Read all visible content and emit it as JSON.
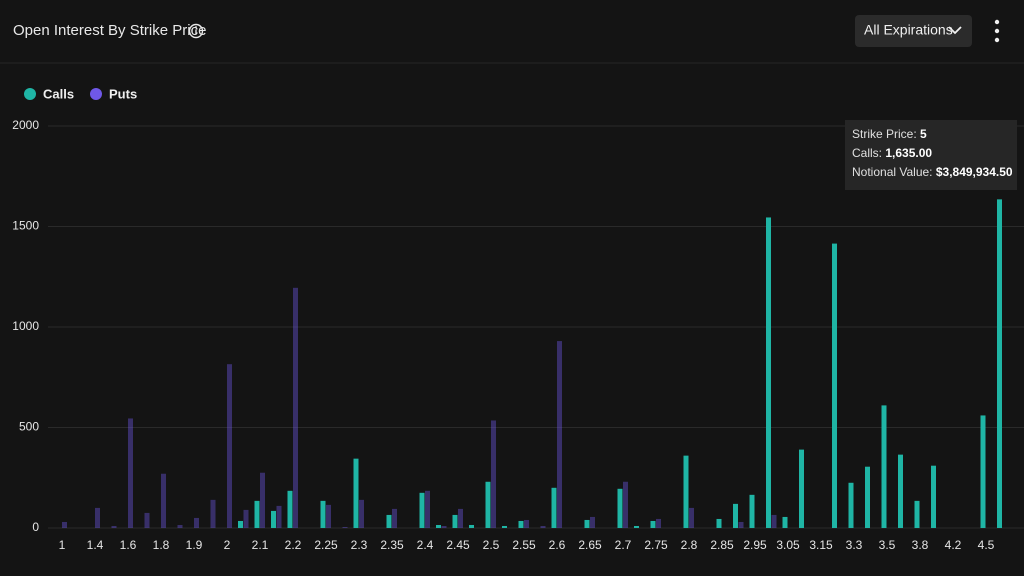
{
  "header": {
    "title": "Open Interest By Strike Price",
    "filter": "All Expirations"
  },
  "tooltip": {
    "strike_label": "Strike Price:",
    "strike": "5",
    "calls_label": "Calls:",
    "calls": "1,635.00",
    "notional_label": "Notional Value:",
    "notional": "$3,849,934.50"
  },
  "chart_data": {
    "type": "bar",
    "categories": [
      "1",
      null,
      "1.4",
      null,
      "1.6",
      null,
      "1.8",
      null,
      "1.9",
      null,
      "2",
      null,
      "2.1",
      null,
      "2.2",
      null,
      "2.25",
      null,
      "2.3",
      null,
      "2.35",
      null,
      "2.4",
      null,
      "2.45",
      null,
      "2.5",
      null,
      "2.55",
      null,
      "2.6",
      null,
      "2.65",
      null,
      "2.7",
      null,
      "2.75",
      null,
      "2.8",
      null,
      "2.85",
      null,
      "2.95",
      null,
      "3.05",
      null,
      "3.15",
      null,
      "3.3",
      null,
      "3.5",
      null,
      "3.8",
      null,
      "4.2",
      null,
      "4.5",
      null
    ],
    "series": [
      {
        "name": "Calls",
        "color": "#1fb5a5",
        "values": [
          0,
          0,
          0,
          0,
          0,
          0,
          0,
          0,
          0,
          0,
          0,
          35,
          135,
          85,
          185,
          0,
          135,
          0,
          345,
          0,
          65,
          0,
          175,
          15,
          65,
          15,
          230,
          10,
          35,
          0,
          200,
          0,
          40,
          0,
          195,
          10,
          35,
          0,
          360,
          0,
          45,
          120,
          165,
          1545,
          55,
          390,
          0,
          1415,
          225,
          305,
          610,
          365,
          135,
          310,
          0,
          0,
          560,
          1635
        ]
      },
      {
        "name": "Puts",
        "color": "#6f58e8",
        "values": [
          30,
          0,
          100,
          10,
          545,
          75,
          270,
          15,
          50,
          140,
          815,
          90,
          275,
          110,
          1195,
          0,
          115,
          5,
          140,
          0,
          95,
          0,
          185,
          10,
          95,
          0,
          535,
          0,
          40,
          10,
          930,
          0,
          55,
          0,
          230,
          0,
          45,
          0,
          100,
          0,
          0,
          30,
          0,
          65,
          0,
          0,
          0,
          0,
          0,
          0,
          0,
          0,
          0,
          0,
          0,
          0,
          0,
          0
        ]
      }
    ],
    "ylim": [
      0,
      2000
    ],
    "yticks": [
      0,
      500,
      1000,
      1500,
      2000
    ],
    "grid": true
  }
}
